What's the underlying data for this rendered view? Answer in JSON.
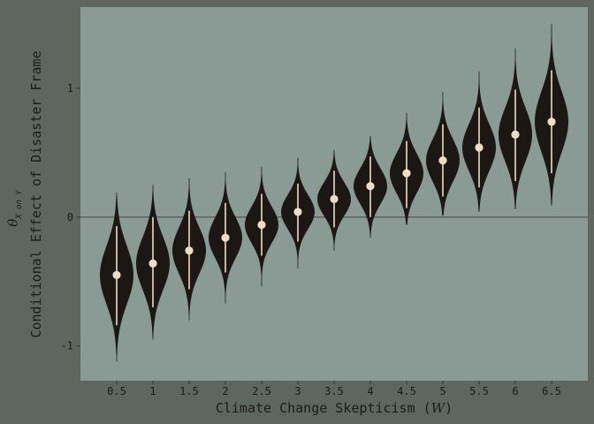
{
  "chart_data": {
    "type": "violin",
    "xlabel": "Climate Change Skepticism (W)",
    "xlabel_main": "Climate Change Skepticism (",
    "xlabel_var": "W",
    "xlabel_close": ")",
    "ylabel_main": "Conditional Effect of Disaster Frame",
    "ylabel_theta": "θ",
    "ylabel_sub": "X on Y",
    "x_ticks": [
      "0.5",
      "1",
      "1.5",
      "2",
      "2.5",
      "3",
      "3.5",
      "4",
      "4.5",
      "5",
      "5.5",
      "6",
      "6.5"
    ],
    "y_ticks": [
      "-1",
      "0",
      "1"
    ],
    "y_tick_values": [
      -1,
      0,
      1
    ],
    "ylim": [
      -1.27,
      1.63
    ],
    "xlim": [
      0.0,
      7.0
    ],
    "reference_line": 0,
    "grid": false,
    "colors": {
      "outer_background": "#5f665f",
      "panel_background": "#8a9b96",
      "violin_fill": "#1c1714",
      "interval_line": "#f0dcc4",
      "point": "#f0dcc4",
      "reference_line": "#555555"
    },
    "points": [
      {
        "x": 0.5,
        "median": -0.45,
        "lo": -0.84,
        "hi": -0.07,
        "min": -1.12,
        "max": 0.19
      },
      {
        "x": 1.0,
        "median": -0.36,
        "lo": -0.7,
        "hi": 0.0,
        "min": -0.95,
        "max": 0.25
      },
      {
        "x": 1.5,
        "median": -0.26,
        "lo": -0.56,
        "hi": 0.05,
        "min": -0.8,
        "max": 0.3
      },
      {
        "x": 2.0,
        "median": -0.16,
        "lo": -0.43,
        "hi": 0.11,
        "min": -0.67,
        "max": 0.35
      },
      {
        "x": 2.5,
        "median": -0.06,
        "lo": -0.3,
        "hi": 0.18,
        "min": -0.54,
        "max": 0.39
      },
      {
        "x": 3.0,
        "median": 0.04,
        "lo": -0.19,
        "hi": 0.26,
        "min": -0.4,
        "max": 0.46
      },
      {
        "x": 3.5,
        "median": 0.14,
        "lo": -0.08,
        "hi": 0.36,
        "min": -0.26,
        "max": 0.52
      },
      {
        "x": 4.0,
        "median": 0.24,
        "lo": 0.0,
        "hi": 0.47,
        "min": -0.16,
        "max": 0.63
      },
      {
        "x": 4.5,
        "median": 0.34,
        "lo": 0.07,
        "hi": 0.59,
        "min": -0.06,
        "max": 0.81
      },
      {
        "x": 5.0,
        "median": 0.44,
        "lo": 0.16,
        "hi": 0.72,
        "min": 0.01,
        "max": 0.97
      },
      {
        "x": 5.5,
        "median": 0.54,
        "lo": 0.23,
        "hi": 0.85,
        "min": 0.04,
        "max": 1.13
      },
      {
        "x": 6.0,
        "median": 0.64,
        "lo": 0.28,
        "hi": 0.99,
        "min": 0.06,
        "max": 1.31
      },
      {
        "x": 6.5,
        "median": 0.74,
        "lo": 0.34,
        "hi": 1.14,
        "min": 0.09,
        "max": 1.5
      }
    ]
  }
}
